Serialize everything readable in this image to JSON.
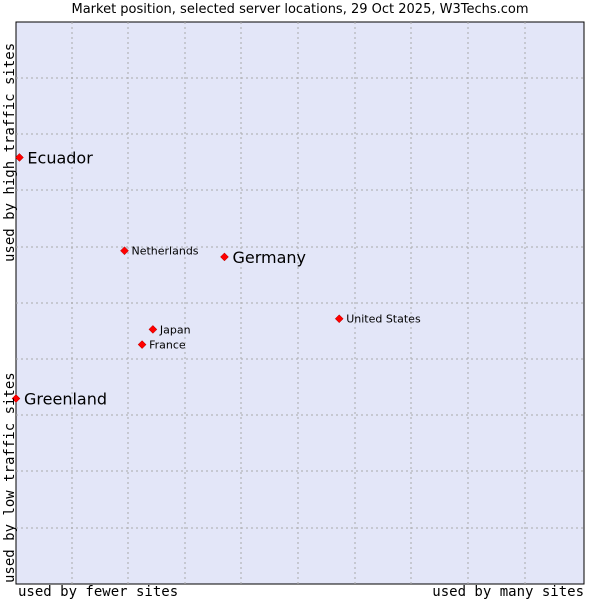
{
  "chart_data": {
    "type": "scatter",
    "title": "Market position, selected server locations, 29 Oct 2025, W3Techs.com",
    "ylabel_top": "used by high traffic sites",
    "ylabel_bottom": "used by low traffic sites",
    "xlabel_left": "used by fewer sites",
    "xlabel_right": "used by many sites",
    "xlim": [
      0,
      100
    ],
    "ylim": [
      0,
      100
    ],
    "grid": true,
    "colors": {
      "background": "#e3e6f8",
      "marker": "#ff0000",
      "grid": "#aaaaaa"
    },
    "points": [
      {
        "label": "Ecuador",
        "x": 0.6,
        "y": 75.9,
        "size": "large"
      },
      {
        "label": "Netherlands",
        "x": 19.1,
        "y": 59.3,
        "size": "small"
      },
      {
        "label": "Germany",
        "x": 36.7,
        "y": 58.2,
        "size": "large"
      },
      {
        "label": "United States",
        "x": 56.9,
        "y": 47.2,
        "size": "small"
      },
      {
        "label": "Japan",
        "x": 24.1,
        "y": 45.3,
        "size": "small"
      },
      {
        "label": "France",
        "x": 22.2,
        "y": 42.6,
        "size": "small"
      },
      {
        "label": "Greenland",
        "x": 0.0,
        "y": 33.0,
        "size": "large"
      }
    ]
  }
}
